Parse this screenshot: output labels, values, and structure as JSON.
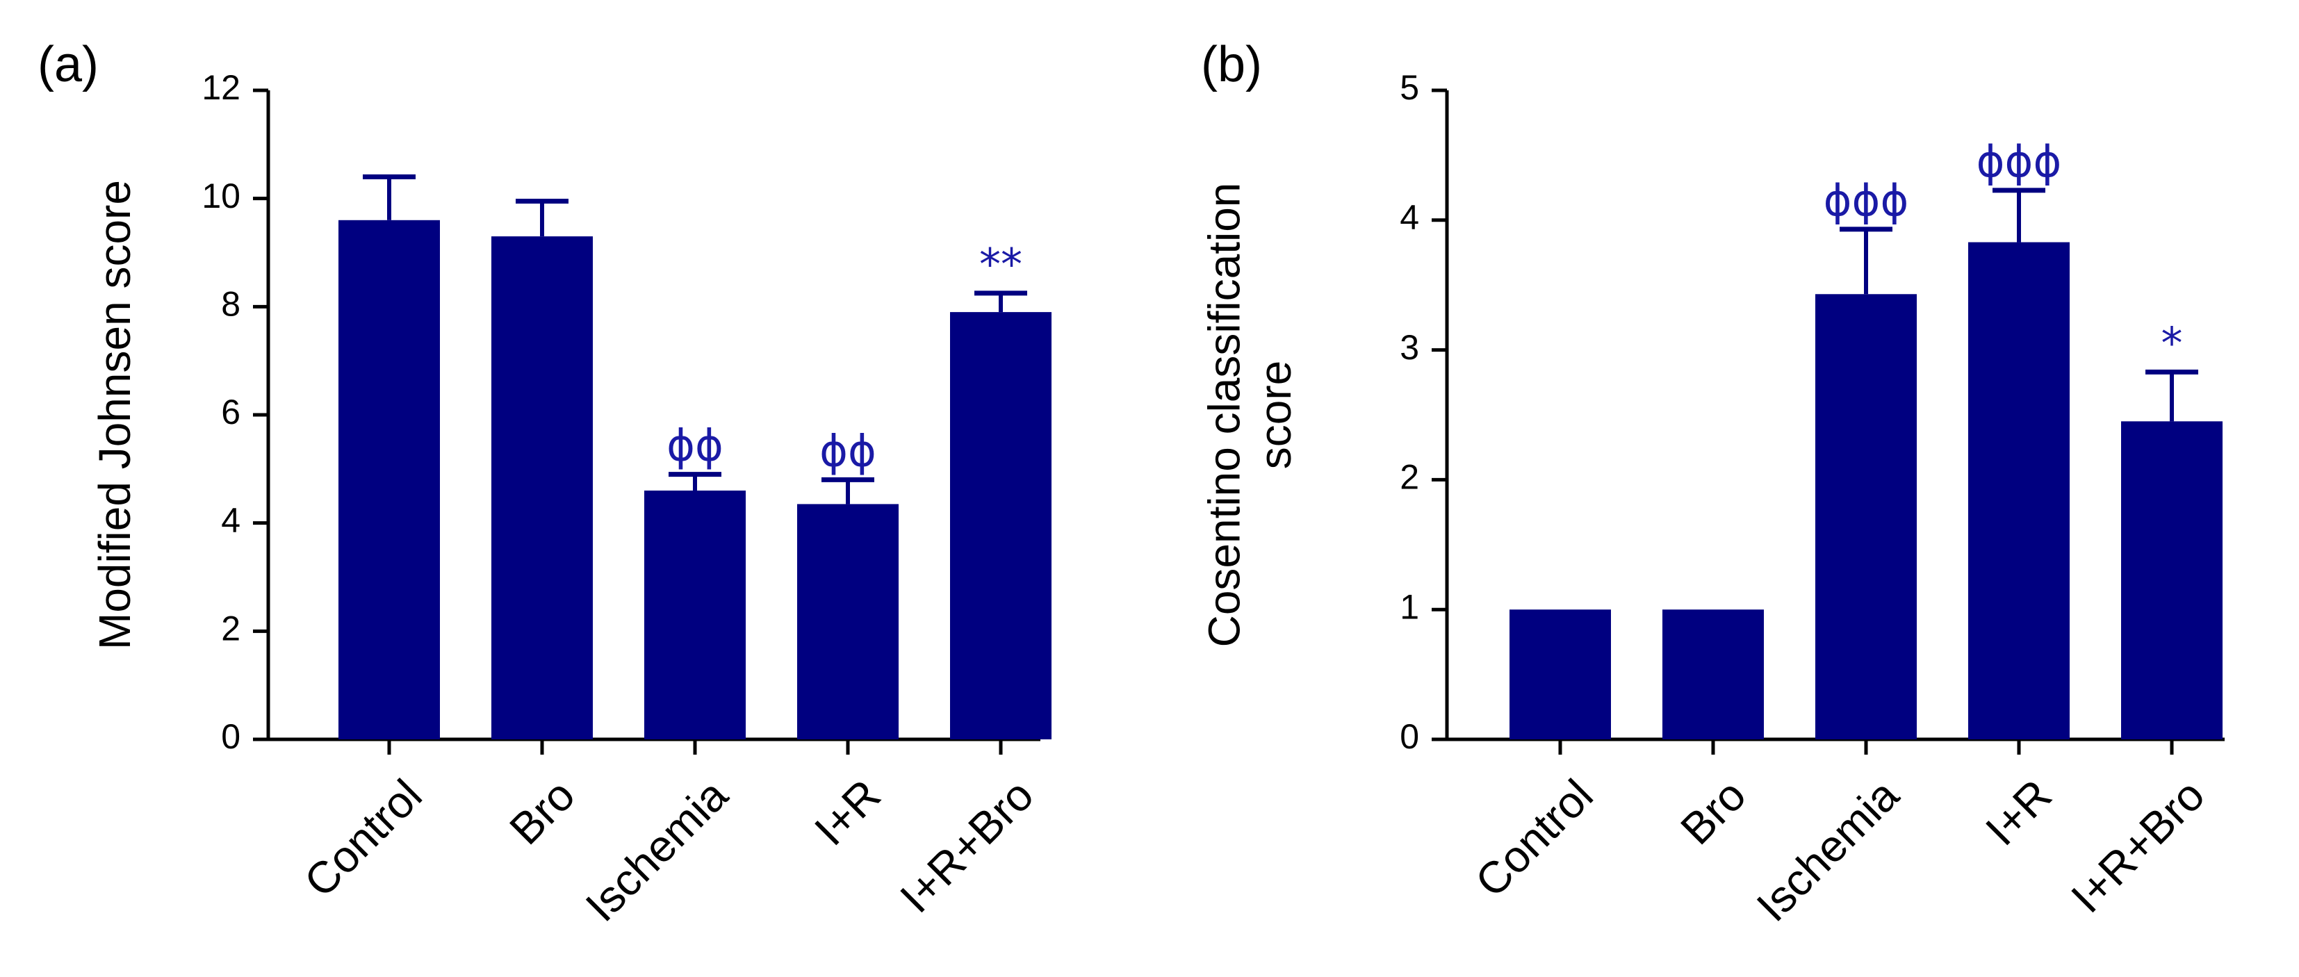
{
  "colors": {
    "bar": "#000080",
    "annotation": "#1a1aa6",
    "axis": "#000000"
  },
  "chart_data": [
    {
      "type": "bar",
      "panel_label": "(a)",
      "title": "",
      "xlabel": "",
      "ylabel": "Modified Johnsen score",
      "ylim": [
        0,
        12
      ],
      "yticks": [
        "0",
        "2",
        "4",
        "6",
        "8",
        "10",
        "12"
      ],
      "categories": [
        "Control",
        "Bro",
        "Ischemia",
        "I+R",
        "I+R+Bro"
      ],
      "values": [
        9.6,
        9.3,
        4.6,
        4.35,
        7.9
      ],
      "errors": [
        0.8,
        0.65,
        0.3,
        0.45,
        0.35
      ],
      "annotations": [
        "",
        "",
        "ϕϕ",
        "ϕϕ",
        "**"
      ]
    },
    {
      "type": "bar",
      "panel_label": "(b)",
      "title": "",
      "xlabel": "",
      "ylabel": "Cosentino classification score",
      "ylabel_lines": [
        "Cosentino classification",
        "score"
      ],
      "ylim": [
        0,
        5
      ],
      "yticks": [
        "0",
        "1",
        "2",
        "3",
        "4",
        "5"
      ],
      "categories": [
        "Control",
        "Bro",
        "Ischemia",
        "I+R",
        "I+R+Bro"
      ],
      "values": [
        1.0,
        1.0,
        3.43,
        3.83,
        2.45
      ],
      "errors": [
        0,
        0,
        0.5,
        0.4,
        0.38
      ],
      "annotations": [
        "",
        "",
        "ϕϕϕ",
        "ϕϕϕ",
        "*"
      ]
    }
  ]
}
